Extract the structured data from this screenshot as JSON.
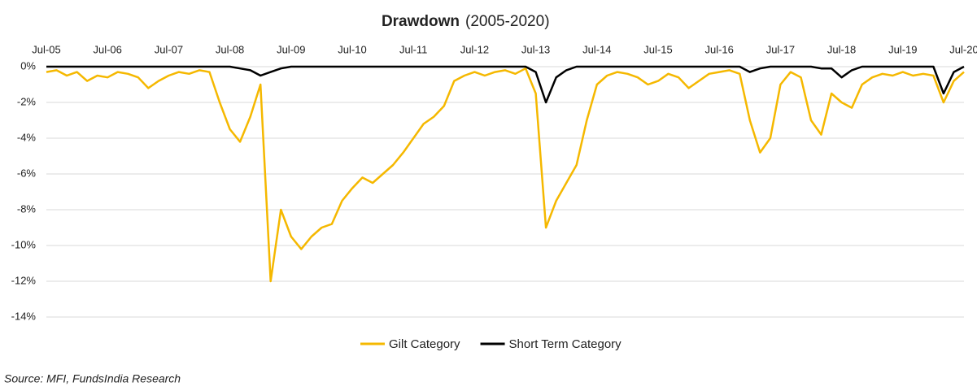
{
  "chart_data": {
    "type": "line",
    "title": "Drawdown",
    "subtitle": "(2005-2020)",
    "categories": [
      "Jul-05",
      null,
      null,
      null,
      null,
      null,
      "Jul-06",
      null,
      null,
      null,
      null,
      null,
      "Jul-07",
      null,
      null,
      null,
      null,
      null,
      "Jul-08",
      null,
      null,
      null,
      null,
      null,
      "Jul-09",
      null,
      null,
      null,
      null,
      null,
      "Jul-10",
      null,
      null,
      null,
      null,
      null,
      "Jul-11",
      null,
      null,
      null,
      null,
      null,
      "Jul-12",
      null,
      null,
      null,
      null,
      null,
      "Jul-13",
      null,
      null,
      null,
      null,
      null,
      "Jul-14",
      null,
      null,
      null,
      null,
      null,
      "Jul-15",
      null,
      null,
      null,
      null,
      null,
      "Jul-16",
      null,
      null,
      null,
      null,
      null,
      "Jul-17",
      null,
      null,
      null,
      null,
      null,
      "Jul-18",
      null,
      null,
      null,
      null,
      null,
      "Jul-19",
      null,
      null,
      null,
      null,
      null,
      "Jul-20"
    ],
    "series": [
      {
        "name": "Gilt Category",
        "color": "#f5b800",
        "values": [
          -0.3,
          -0.2,
          -0.5,
          -0.3,
          -0.8,
          -0.5,
          -0.6,
          -0.3,
          -0.4,
          -0.6,
          -1.2,
          -0.8,
          -0.5,
          -0.3,
          -0.4,
          -0.2,
          -0.3,
          -2.0,
          -3.5,
          -4.2,
          -2.8,
          -1.0,
          -12.0,
          -8.0,
          -9.5,
          -10.2,
          -9.5,
          -9.0,
          -8.8,
          -7.5,
          -6.8,
          -6.2,
          -6.5,
          -6.0,
          -5.5,
          -4.8,
          -4.0,
          -3.2,
          -2.8,
          -2.2,
          -0.8,
          -0.5,
          -0.3,
          -0.5,
          -0.3,
          -0.2,
          -0.4,
          -0.1,
          -1.5,
          -9.0,
          -7.5,
          -6.5,
          -5.5,
          -3.0,
          -1.0,
          -0.5,
          -0.3,
          -0.4,
          -0.6,
          -1.0,
          -0.8,
          -0.4,
          -0.6,
          -1.2,
          -0.8,
          -0.4,
          -0.3,
          -0.2,
          -0.4,
          -3.0,
          -4.8,
          -4.0,
          -1.0,
          -0.3,
          -0.6,
          -3.0,
          -3.8,
          -1.5,
          -2.0,
          -2.3,
          -1.0,
          -0.6,
          -0.4,
          -0.5,
          -0.3,
          -0.5,
          -0.4,
          -0.5,
          -2.0,
          -0.8,
          -0.3
        ]
      },
      {
        "name": "Short Term Category",
        "color": "#000000",
        "values": [
          0,
          0,
          0,
          0,
          0,
          0,
          0,
          0,
          0,
          0,
          0,
          0,
          0,
          0,
          0,
          0,
          0,
          0,
          0,
          -0.1,
          -0.2,
          -0.5,
          -0.3,
          -0.1,
          0,
          0,
          0,
          0,
          0,
          0,
          0,
          0,
          0,
          0,
          0,
          0,
          0,
          0,
          0,
          0,
          0,
          0,
          0,
          0,
          0,
          0,
          0,
          0,
          -0.3,
          -2.0,
          -0.6,
          -0.2,
          0,
          0,
          0,
          0,
          0,
          0,
          0,
          0,
          0,
          0,
          0,
          0,
          0,
          0,
          0,
          0,
          0,
          -0.3,
          -0.1,
          0,
          0,
          0,
          0,
          0,
          -0.1,
          -0.1,
          -0.6,
          -0.2,
          0,
          0,
          0,
          0,
          0,
          0,
          0,
          0,
          -1.5,
          -0.3,
          0
        ]
      }
    ],
    "ylim": [
      -14,
      0
    ],
    "yticks": [
      {
        "value": 0,
        "label": "0%"
      },
      {
        "value": -2,
        "label": "-2%"
      },
      {
        "value": -4,
        "label": "-4%"
      },
      {
        "value": -6,
        "label": "-6%"
      },
      {
        "value": -8,
        "label": "-8%"
      },
      {
        "value": -10,
        "label": "-10%"
      },
      {
        "value": -12,
        "label": "-12%"
      },
      {
        "value": -14,
        "label": "-14%"
      }
    ],
    "grid": true,
    "legend": "bottom",
    "source": "Source: MFI, FundsIndia Research"
  }
}
